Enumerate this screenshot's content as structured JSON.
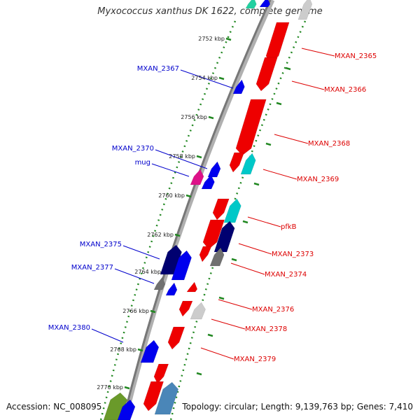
{
  "title": "Myxococcus xanthus DK 1622, complete genome",
  "footer": {
    "accession": "Accession: NC_008095",
    "topology": "Topology: circular; Length: 9,139,763 bp; Genes: 7,410"
  },
  "colors": {
    "red": "#ee0000",
    "blue": "#0000ee",
    "navy": "#000070",
    "cyan": "#00c8c8",
    "gray": "#707070",
    "lightgray": "#cccccc",
    "magenta": "#dd1188",
    "olive": "#6a9a2a",
    "steelblue": "#4a86b8",
    "teal": "#22d0a0",
    "tick_green": "#228822",
    "label_red": "#dd0000",
    "label_blue": "#0000cc"
  },
  "kbp_labels": [
    "2752 kbp",
    "2754 kbp",
    "2756 kbp",
    "2758 kbp",
    "2760 kbp",
    "2762 kbp",
    "2764 kbp",
    "2766 kbp",
    "2768 kbp",
    "2770 kbp"
  ],
  "genes_right": [
    "MXAN_2365",
    "MXAN_2366",
    "MXAN_2368",
    "MXAN_2369",
    "pfkB",
    "MXAN_2373",
    "MXAN_2374",
    "MXAN_2376",
    "MXAN_2378",
    "MXAN_2379"
  ],
  "genes_left": [
    "MXAN_2367",
    "MXAN_2370",
    "mug",
    "MXAN_2375",
    "MXAN_2377",
    "MXAN_2380"
  ]
}
